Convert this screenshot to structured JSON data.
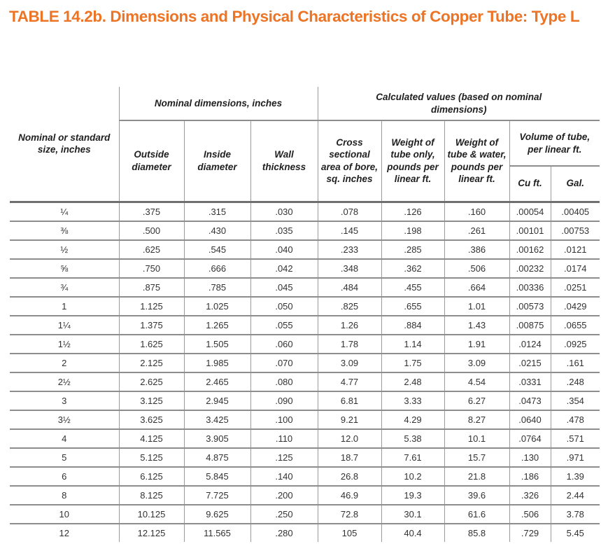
{
  "page_title": "TABLE 14.2b. Dimensions and Physical Characteristics of Copper Tube: Type L",
  "accent_color": "#EC7424",
  "table": {
    "corner_header": "Nominal or standard size, inches",
    "groups": {
      "nominal": "Nominal dimensions, inches",
      "calculated": "Calculated values (based on nominal dimensions)"
    },
    "columns": {
      "outside_diameter": "Outside diameter",
      "inside_diameter": "Inside diameter",
      "wall_thickness": "Wall thickness",
      "cross_sectional_area": "Cross sectional area of bore, sq. inches",
      "weight_tube_only": "Weight of tube only, pounds per linear ft.",
      "weight_tube_water": "Weight of tube & water, pounds per linear ft.",
      "volume_group": "Volume of tube, per linear ft.",
      "volume_cuft": "Cu ft.",
      "volume_gal": "Gal."
    },
    "rows": [
      [
        "¼",
        ".375",
        ".315",
        ".030",
        ".078",
        ".126",
        ".160",
        ".00054",
        ".00405"
      ],
      [
        "⅜",
        ".500",
        ".430",
        ".035",
        ".145",
        ".198",
        ".261",
        ".00101",
        ".00753"
      ],
      [
        "½",
        ".625",
        ".545",
        ".040",
        ".233",
        ".285",
        ".386",
        ".00162",
        ".0121"
      ],
      [
        "⅝",
        ".750",
        ".666",
        ".042",
        ".348",
        ".362",
        ".506",
        ".00232",
        ".0174"
      ],
      [
        "¾",
        ".875",
        ".785",
        ".045",
        ".484",
        ".455",
        ".664",
        ".00336",
        ".0251"
      ],
      [
        "1",
        "1.125",
        "1.025",
        ".050",
        ".825",
        ".655",
        "1.01",
        ".00573",
        ".0429"
      ],
      [
        "1¼",
        "1.375",
        "1.265",
        ".055",
        "1.26",
        ".884",
        "1.43",
        ".00875",
        ".0655"
      ],
      [
        "1½",
        "1.625",
        "1.505",
        ".060",
        "1.78",
        "1.14",
        "1.91",
        ".0124",
        ".0925"
      ],
      [
        "2",
        "2.125",
        "1.985",
        ".070",
        "3.09",
        "1.75",
        "3.09",
        ".0215",
        ".161"
      ],
      [
        "2½",
        "2.625",
        "2.465",
        ".080",
        "4.77",
        "2.48",
        "4.54",
        ".0331",
        ".248"
      ],
      [
        "3",
        "3.125",
        "2.945",
        ".090",
        "6.81",
        "3.33",
        "6.27",
        ".0473",
        ".354"
      ],
      [
        "3½",
        "3.625",
        "3.425",
        ".100",
        "9.21",
        "4.29",
        "8.27",
        ".0640",
        ".478"
      ],
      [
        "4",
        "4.125",
        "3.905",
        ".110",
        "12.0",
        "5.38",
        "10.1",
        ".0764",
        ".571"
      ],
      [
        "5",
        "5.125",
        "4.875",
        ".125",
        "18.7",
        "7.61",
        "15.7",
        ".130",
        ".971"
      ],
      [
        "6",
        "6.125",
        "5.845",
        ".140",
        "26.8",
        "10.2",
        "21.8",
        ".186",
        "1.39"
      ],
      [
        "8",
        "8.125",
        "7.725",
        ".200",
        "46.9",
        "19.3",
        "39.6",
        ".326",
        "2.44"
      ],
      [
        "10",
        "10.125",
        "9.625",
        ".250",
        "72.8",
        "30.1",
        "61.6",
        ".506",
        "3.78"
      ],
      [
        "12",
        "12.125",
        "11.565",
        ".280",
        "105",
        "40.4",
        "85.8",
        ".729",
        "5.45"
      ]
    ]
  }
}
